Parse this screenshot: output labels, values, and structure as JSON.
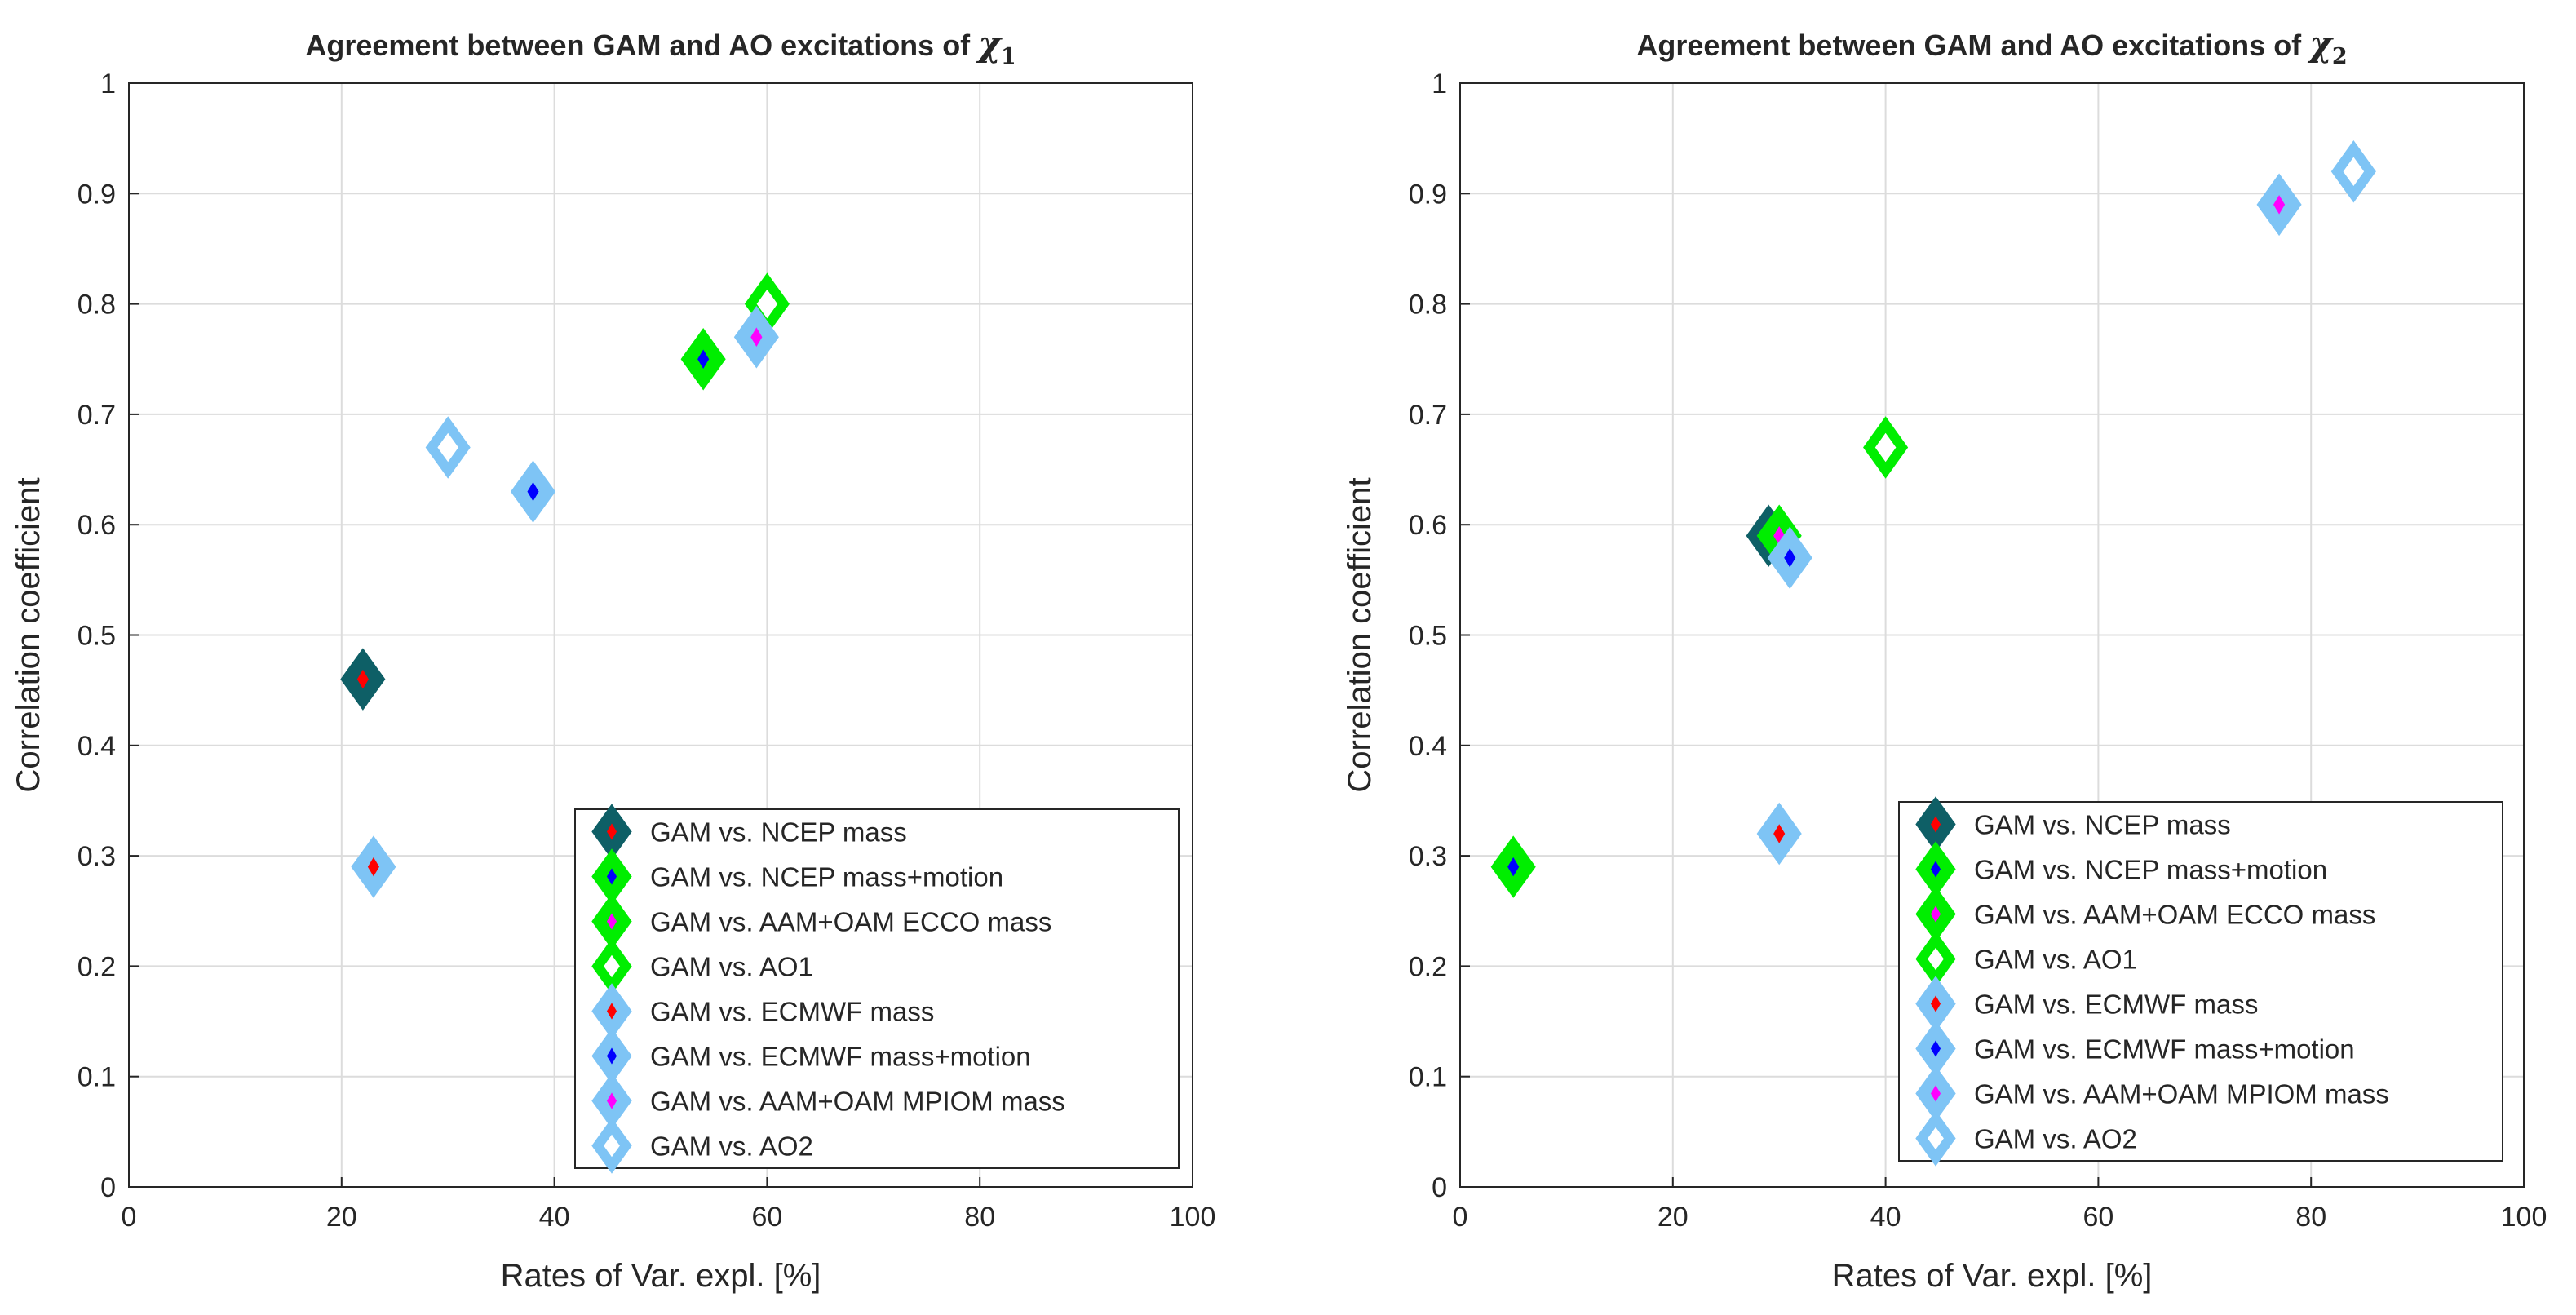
{
  "chart_data": [
    {
      "type": "scatter",
      "title": "Agreement between GAM and AO excitations of",
      "title_symbol": "χ",
      "title_subscript": "1",
      "xlabel": "Rates of Var. expl. [%]",
      "ylabel": "Correlation coefficient",
      "xlim": [
        0,
        100
      ],
      "ylim": [
        0,
        1
      ],
      "xticks": [
        "0",
        "20",
        "40",
        "60",
        "80",
        "100"
      ],
      "yticks": [
        "0",
        "0.1",
        "0.2",
        "0.3",
        "0.4",
        "0.5",
        "0.6",
        "0.7",
        "0.8",
        "0.9",
        "1"
      ],
      "grid": true,
      "legend_position": "bottom-right",
      "series": [
        {
          "name": "GAM vs. NCEP mass",
          "edge": "#0e5f66",
          "face": "#0e5f66",
          "center": "#ff0000",
          "points": [
            [
              22,
              0.46
            ]
          ]
        },
        {
          "name": "GAM vs. NCEP mass+motion",
          "edge": "#00ee00",
          "face": "#00ee00",
          "center": "#0000ff",
          "points": [
            [
              54,
              0.75
            ]
          ]
        },
        {
          "name": "GAM vs. AAM+OAM ECCO mass",
          "edge": "#00ee00",
          "face": "#00ee00",
          "center": "#ff00ff",
          "points": []
        },
        {
          "name": "GAM vs. AO1",
          "edge": "#00ee00",
          "face": "#ffffff",
          "center": "",
          "points": [
            [
              60,
              0.8
            ]
          ]
        },
        {
          "name": "GAM vs. ECMWF mass",
          "edge": "#7ec4f5",
          "face": "#7ec4f5",
          "center": "#ff0000",
          "points": [
            [
              23,
              0.29
            ]
          ]
        },
        {
          "name": "GAM vs. ECMWF mass+motion",
          "edge": "#7ec4f5",
          "face": "#7ec4f5",
          "center": "#0000ff",
          "points": [
            [
              38,
              0.63
            ]
          ]
        },
        {
          "name": "GAM vs. AAM+OAM MPIOM mass",
          "edge": "#7ec4f5",
          "face": "#7ec4f5",
          "center": "#ff00ff",
          "points": [
            [
              59,
              0.77
            ]
          ]
        },
        {
          "name": "GAM vs. AO2",
          "edge": "#7ec4f5",
          "face": "#ffffff",
          "center": "",
          "points": [
            [
              30,
              0.67
            ]
          ]
        }
      ]
    },
    {
      "type": "scatter",
      "title": "Agreement between GAM and AO excitations of",
      "title_symbol": "χ",
      "title_subscript": "2",
      "xlabel": "Rates of Var. expl. [%]",
      "ylabel": "Correlation coefficient",
      "xlim": [
        0,
        100
      ],
      "ylim": [
        0,
        1
      ],
      "xticks": [
        "0",
        "20",
        "40",
        "60",
        "80",
        "100"
      ],
      "yticks": [
        "0",
        "0.1",
        "0.2",
        "0.3",
        "0.4",
        "0.5",
        "0.6",
        "0.7",
        "0.8",
        "0.9",
        "1"
      ],
      "grid": true,
      "legend_position": "bottom-right",
      "series": [
        {
          "name": "GAM vs. NCEP mass",
          "edge": "#0e5f66",
          "face": "#0e5f66",
          "center": "#ff0000",
          "points": [
            [
              29,
              0.59
            ]
          ]
        },
        {
          "name": "GAM vs. NCEP mass+motion",
          "edge": "#00ee00",
          "face": "#00ee00",
          "center": "#0000ff",
          "points": [
            [
              5,
              0.29
            ]
          ]
        },
        {
          "name": "GAM vs. AAM+OAM ECCO mass",
          "edge": "#00ee00",
          "face": "#00ee00",
          "center": "#ff00ff",
          "points": [
            [
              30,
              0.59
            ]
          ]
        },
        {
          "name": "GAM vs. AO1",
          "edge": "#00ee00",
          "face": "#ffffff",
          "center": "",
          "points": [
            [
              40,
              0.67
            ]
          ]
        },
        {
          "name": "GAM vs. ECMWF mass",
          "edge": "#7ec4f5",
          "face": "#7ec4f5",
          "center": "#ff0000",
          "points": [
            [
              30,
              0.32
            ]
          ]
        },
        {
          "name": "GAM vs. ECMWF mass+motion",
          "edge": "#7ec4f5",
          "face": "#7ec4f5",
          "center": "#0000ff",
          "points": [
            [
              31,
              0.57
            ]
          ]
        },
        {
          "name": "GAM vs. AAM+OAM MPIOM mass",
          "edge": "#7ec4f5",
          "face": "#7ec4f5",
          "center": "#ff00ff",
          "points": [
            [
              77,
              0.89
            ]
          ]
        },
        {
          "name": "GAM vs. AO2",
          "edge": "#7ec4f5",
          "face": "#ffffff",
          "center": "",
          "points": [
            [
              84,
              0.92
            ]
          ]
        }
      ]
    }
  ]
}
